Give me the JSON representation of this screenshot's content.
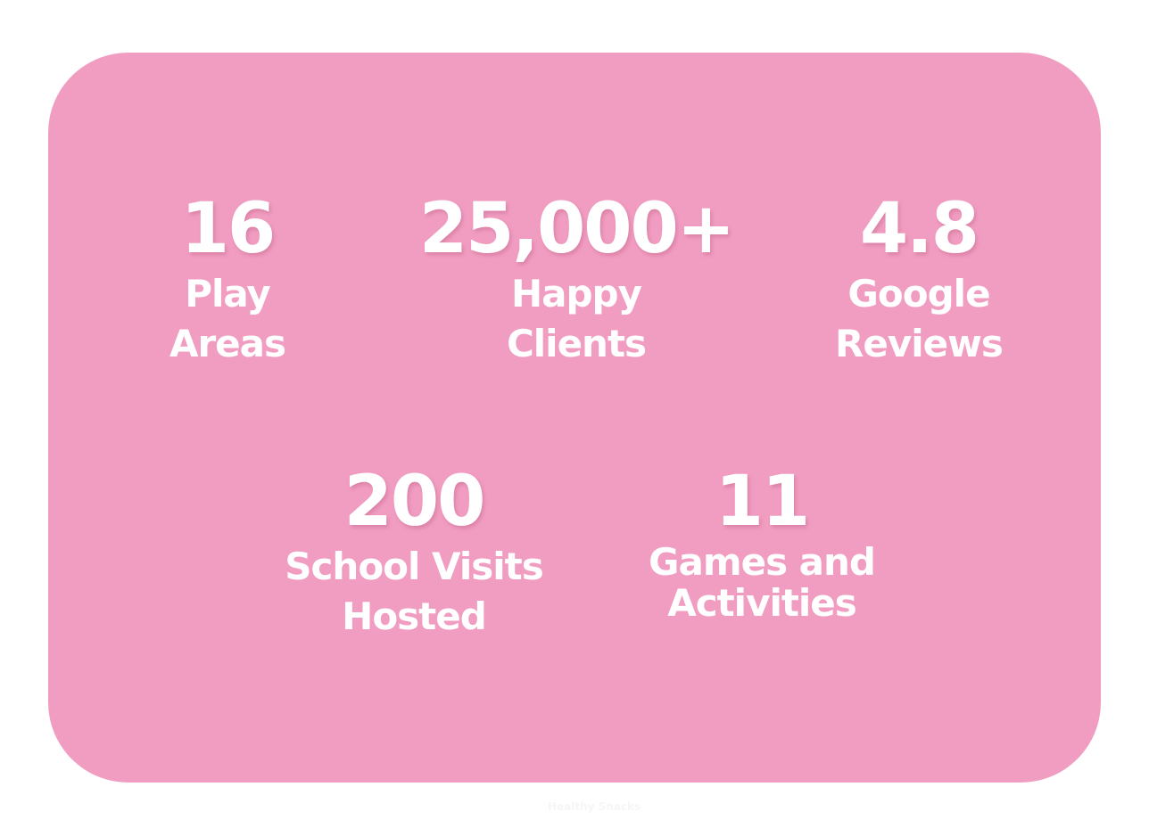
{
  "accent_color": "#f19dc1",
  "stats": [
    {
      "value": "16",
      "label_line1": "Play",
      "label_line2": "Areas"
    },
    {
      "value": "25,000+",
      "label_line1": "Happy",
      "label_line2": "Clients"
    },
    {
      "value": "4.8",
      "label_line1": "Google",
      "label_line2": "Reviews"
    },
    {
      "value": "200",
      "label_line1": "School Visits",
      "label_line2": "Hosted"
    },
    {
      "value": "11",
      "label_line1": "Games and",
      "label_line2": "Activities"
    }
  ],
  "footer_faint_text": "Healthy Snacks"
}
